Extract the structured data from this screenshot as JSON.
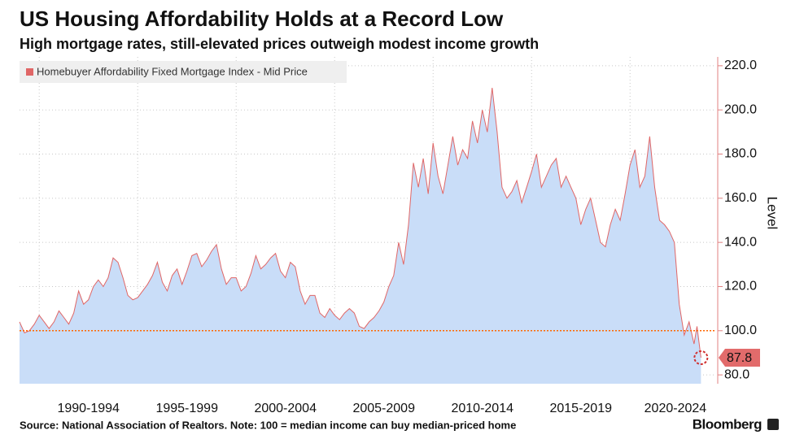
{
  "chart_data": {
    "type": "area",
    "title": "US Housing Affordability Holds at a Record Low",
    "subtitle": "High mortgage rates, still-elevated prices outweigh modest income growth",
    "y_axis_label": "Level",
    "source": "Source: National Association of Realtors. Note: 100 = median income can buy median-priced home",
    "brand": "Bloomberg",
    "x": [
      1989,
      1989.25,
      1989.5,
      1989.75,
      1990,
      1990.25,
      1990.5,
      1990.75,
      1991,
      1991.25,
      1991.5,
      1991.75,
      1992,
      1992.25,
      1992.5,
      1992.75,
      1993,
      1993.25,
      1993.5,
      1993.75,
      1994,
      1994.25,
      1994.5,
      1994.75,
      1995,
      1995.25,
      1995.5,
      1995.75,
      1996,
      1996.25,
      1996.5,
      1996.75,
      1997,
      1997.25,
      1997.5,
      1997.75,
      1998,
      1998.25,
      1998.5,
      1998.75,
      1999,
      1999.25,
      1999.5,
      1999.75,
      2000,
      2000.25,
      2000.5,
      2000.75,
      2001,
      2001.25,
      2001.5,
      2001.75,
      2002,
      2002.25,
      2002.5,
      2002.75,
      2003,
      2003.25,
      2003.5,
      2003.75,
      2004,
      2004.25,
      2004.5,
      2004.75,
      2005,
      2005.25,
      2005.5,
      2005.75,
      2006,
      2006.25,
      2006.5,
      2006.75,
      2007,
      2007.25,
      2007.5,
      2007.75,
      2008,
      2008.25,
      2008.5,
      2008.75,
      2009,
      2009.25,
      2009.5,
      2009.75,
      2010,
      2010.25,
      2010.5,
      2010.75,
      2011,
      2011.25,
      2011.5,
      2011.75,
      2012,
      2012.25,
      2012.5,
      2012.75,
      2013,
      2013.25,
      2013.5,
      2013.75,
      2014,
      2014.25,
      2014.5,
      2014.75,
      2015,
      2015.25,
      2015.5,
      2015.75,
      2016,
      2016.25,
      2016.5,
      2016.75,
      2017,
      2017.25,
      2017.5,
      2017.75,
      2018,
      2018.25,
      2018.5,
      2018.75,
      2019,
      2019.25,
      2019.5,
      2019.75,
      2020,
      2020.25,
      2020.5,
      2020.75,
      2021,
      2021.25,
      2021.5,
      2021.75,
      2022,
      2022.25,
      2022.5,
      2022.75,
      2023,
      2023.25,
      2023.4,
      2023.6
    ],
    "series": [
      {
        "name": "Homebuyer Affordability Fixed Mortgage Index - Mid Price",
        "color": "#e06666",
        "fill": "#c9ddf8",
        "values": [
          104,
          99,
          100,
          103,
          107,
          104,
          101,
          104,
          109,
          106,
          103,
          108,
          118,
          112,
          114,
          120,
          123,
          120,
          124,
          133,
          131,
          124,
          116,
          114,
          115,
          118,
          121,
          125,
          131,
          122,
          118,
          125,
          128,
          121,
          127,
          134,
          135,
          129,
          132,
          136,
          139,
          128,
          121,
          124,
          124,
          118,
          120,
          126,
          134,
          128,
          130,
          133,
          135,
          127,
          124,
          131,
          129,
          118,
          112,
          116,
          116,
          108,
          106,
          110,
          107,
          105,
          108,
          110,
          108,
          102,
          101,
          104,
          106,
          109,
          113,
          120,
          125,
          140,
          130,
          148,
          176,
          165,
          178,
          162,
          185,
          170,
          162,
          175,
          188,
          175,
          182,
          178,
          195,
          185,
          200,
          190,
          210,
          190,
          165,
          160,
          163,
          168,
          158,
          165,
          172,
          180,
          165,
          170,
          175,
          178,
          165,
          170,
          165,
          160,
          148,
          155,
          160,
          150,
          140,
          138,
          148,
          155,
          150,
          162,
          175,
          182,
          165,
          170,
          188,
          165,
          150,
          148,
          145,
          140,
          112,
          98,
          104,
          94,
          102,
          87.8
        ]
      }
    ],
    "xlim": [
      1989,
      2024.37
    ],
    "xticks": [
      {
        "value": 1992.5,
        "label": "1990-1994"
      },
      {
        "value": 1997.5,
        "label": "1995-1999"
      },
      {
        "value": 2002.5,
        "label": "2000-2004"
      },
      {
        "value": 2007.5,
        "label": "2005-2009"
      },
      {
        "value": 2012.5,
        "label": "2010-2014"
      },
      {
        "value": 2017.5,
        "label": "2015-2019"
      },
      {
        "value": 2022.3,
        "label": "2020-2024"
      }
    ],
    "xgrid_lines": [
      1990,
      1995,
      2000,
      2005,
      2010,
      2015,
      2020
    ],
    "ylim": [
      76,
      224
    ],
    "yticks": [
      {
        "value": 80,
        "label": "80.0"
      },
      {
        "value": 100,
        "label": "100.0"
      },
      {
        "value": 120,
        "label": "120.0"
      },
      {
        "value": 140,
        "label": "140.0"
      },
      {
        "value": 160,
        "label": "160.0"
      },
      {
        "value": 180,
        "label": "180.0"
      },
      {
        "value": 200,
        "label": "200.0"
      },
      {
        "value": 220,
        "label": "220.0"
      }
    ],
    "reference_line": 100,
    "reference_color": "#ff6600",
    "grid": true,
    "legend": "top-left"
  }
}
